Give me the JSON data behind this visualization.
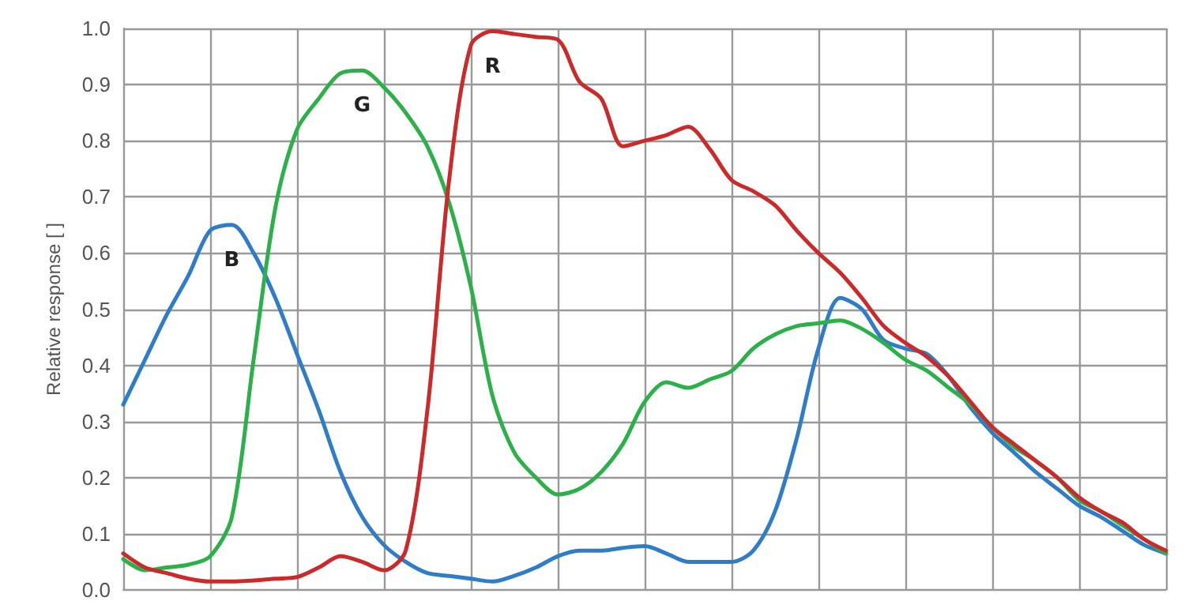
{
  "chart_data": {
    "type": "line",
    "ylabel": "Relative response [ ]",
    "categories": [
      null,
      null,
      null,
      null,
      null,
      null,
      null,
      null,
      null,
      null,
      null,
      null,
      null,
      null,
      null,
      null,
      null,
      null,
      null,
      null,
      null,
      null,
      null,
      null,
      null,
      null,
      null,
      null,
      null,
      null,
      null,
      null,
      null,
      null,
      null,
      null,
      null,
      null,
      null,
      null,
      null,
      null,
      null,
      null,
      null,
      null,
      null,
      null,
      null
    ],
    "series": [
      {
        "name": "B",
        "color": "#2e7dc6",
        "values": [
          0.33,
          0.41,
          0.49,
          0.56,
          0.64,
          0.65,
          0.6,
          0.52,
          0.42,
          0.32,
          0.21,
          0.13,
          0.08,
          0.05,
          0.03,
          0.025,
          0.02,
          0.015,
          0.025,
          0.04,
          0.06,
          0.07,
          0.07,
          0.075,
          0.078,
          0.065,
          0.05,
          0.05,
          0.05,
          0.07,
          0.14,
          0.27,
          0.43,
          0.52,
          0.5,
          0.445,
          0.43,
          0.42,
          0.38,
          0.325,
          0.28,
          0.245,
          0.21,
          0.18,
          0.15,
          0.13,
          0.105,
          0.08,
          0.065
        ]
      },
      {
        "name": "G",
        "color": "#2bb04a",
        "values": [
          0.055,
          0.035,
          0.04,
          0.045,
          0.06,
          0.13,
          0.41,
          0.68,
          0.82,
          0.875,
          0.92,
          0.925,
          0.895,
          0.85,
          0.79,
          0.69,
          0.54,
          0.345,
          0.245,
          0.2,
          0.17,
          0.18,
          0.21,
          0.26,
          0.335,
          0.37,
          0.36,
          0.375,
          0.39,
          0.43,
          0.455,
          0.47,
          0.475,
          0.48,
          0.465,
          0.44,
          0.41,
          0.39,
          0.36,
          0.33,
          0.29,
          0.255,
          0.23,
          0.2,
          0.16,
          0.14,
          0.115,
          0.09,
          0.065
        ]
      },
      {
        "name": "R",
        "color": "#cc2a2a",
        "values": [
          0.065,
          0.04,
          0.03,
          0.02,
          0.015,
          0.015,
          0.017,
          0.02,
          0.023,
          0.04,
          0.06,
          0.05,
          0.035,
          0.07,
          0.32,
          0.73,
          0.97,
          0.995,
          0.99,
          0.985,
          0.98,
          0.905,
          0.875,
          0.79,
          0.8,
          0.81,
          0.825,
          0.785,
          0.73,
          0.71,
          0.685,
          0.64,
          0.6,
          0.565,
          0.52,
          0.47,
          0.44,
          0.415,
          0.38,
          0.335,
          0.29,
          0.26,
          0.23,
          0.2,
          0.165,
          0.14,
          0.12,
          0.09,
          0.07
        ]
      }
    ],
    "ylim": [
      0,
      1
    ],
    "yticks": [
      {
        "value": 0,
        "label": "0.0"
      },
      0.1,
      0.2,
      0.3,
      0.4,
      0.5,
      0.6,
      0.7,
      0.8,
      0.9,
      {
        "value": 1,
        "label": "1.0"
      }
    ],
    "grid": true,
    "legend": false,
    "marker": "none",
    "line_style": "solid",
    "tick_labels": "y"
  }
}
